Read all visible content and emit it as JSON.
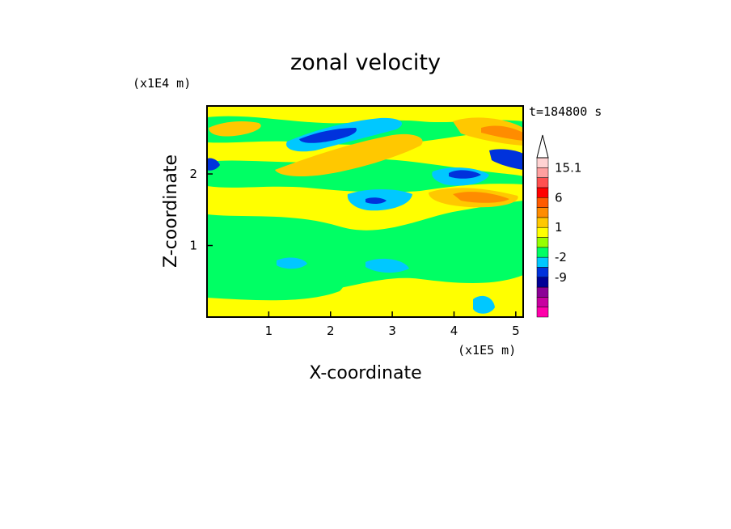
{
  "chart_data": {
    "type": "heatmap",
    "title": "zonal velocity",
    "xlabel": "X-coordinate",
    "ylabel": "Z-coordinate",
    "x_scale_label": "(x1E5 m)",
    "y_scale_label": "(x1E4 m)",
    "time_label": "t=184800 s",
    "xlim": [
      0,
      5.12
    ],
    "ylim": [
      0,
      2.95
    ],
    "x_ticks": [
      "1",
      "2",
      "3",
      "4",
      "5"
    ],
    "x_tick_values": [
      1,
      2,
      3,
      4,
      5
    ],
    "y_ticks": [
      "1",
      "2"
    ],
    "y_tick_values": [
      1,
      2
    ],
    "colorbar": {
      "levels": [
        "-12",
        "-9",
        "-6",
        "-2",
        "-1",
        "0",
        "1",
        "2",
        "3",
        "6",
        "9",
        "12",
        "15.1"
      ],
      "labels": [
        "15.1",
        "6",
        "1",
        "-2",
        "-9"
      ],
      "label_values": [
        15.1,
        6,
        1,
        -2,
        -9
      ],
      "colors": [
        "#ff00aa",
        "#c800a0",
        "#8c0096",
        "#000096",
        "#0032dc",
        "#00c8ff",
        "#00ff64",
        "#96ff00",
        "#ffff00",
        "#ffc800",
        "#ff8c00",
        "#ff5a00",
        "#ff0000",
        "#ff5050",
        "#ffa0a0",
        "#ffd2d2"
      ]
    },
    "features": [
      {
        "x": 1.9,
        "z": 2.55,
        "value": -8
      },
      {
        "x": 2.7,
        "z": 2.75,
        "value": -4
      },
      {
        "x": 4.1,
        "z": 2.0,
        "value": -8
      },
      {
        "x": 4.95,
        "z": 2.2,
        "value": -8
      },
      {
        "x": 0.05,
        "z": 2.15,
        "value": -7
      },
      {
        "x": 2.65,
        "z": 1.6,
        "value": -6
      },
      {
        "x": 2.65,
        "z": 1.75,
        "value": -2
      },
      {
        "x": 4.5,
        "z": 1.65,
        "value": 6
      },
      {
        "x": 4.85,
        "z": 2.55,
        "value": 6
      },
      {
        "x": 2.7,
        "z": 2.35,
        "value": 4
      },
      {
        "x": 0.4,
        "z": 2.6,
        "value": 3
      },
      {
        "x": 4.2,
        "z": 2.6,
        "value": 3
      },
      {
        "x": 1.3,
        "z": 0.9,
        "value": -1
      },
      {
        "x": 3.6,
        "z": 0.8,
        "value": -1
      }
    ],
    "grid": false,
    "legend": "right"
  }
}
